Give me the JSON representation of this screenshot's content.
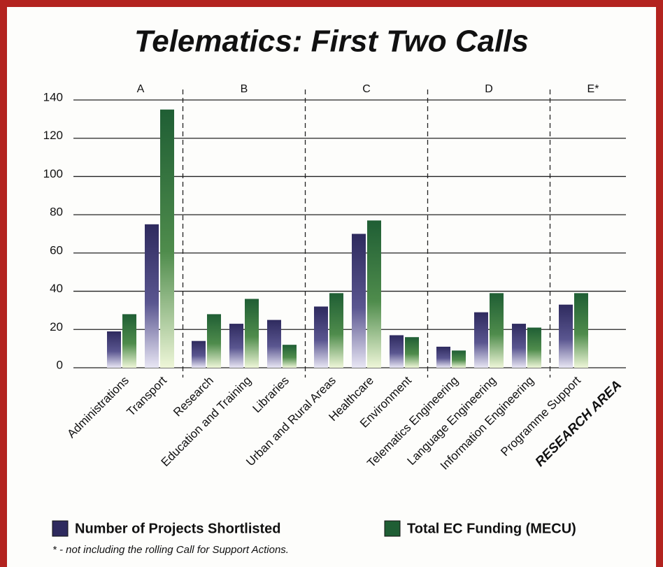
{
  "chart_data": {
    "type": "bar",
    "title": "Telematics: First Two Calls",
    "xlabel": "RESEARCH AREA",
    "groups": [
      {
        "label": "A",
        "size": 2
      },
      {
        "label": "B",
        "size": 3
      },
      {
        "label": "C",
        "size": 3
      },
      {
        "label": "D",
        "size": 3
      },
      {
        "label": "E*",
        "size": 1
      }
    ],
    "categories": [
      "Administrations",
      "Transport",
      "Research",
      "Education and Training",
      "Libraries",
      "Urban and Rural Areas",
      "Healthcare",
      "Environment",
      "Telematics Engineering",
      "Language Engineering",
      "Information Engineering",
      "Programme Support"
    ],
    "series": [
      {
        "name": "Number of Projects Shortlisted",
        "color": "#2e2a5e",
        "values": [
          19,
          75,
          14,
          23,
          25,
          32,
          70,
          17,
          11,
          29,
          23,
          33
        ]
      },
      {
        "name": "Total EC Funding (MECU)",
        "color": "#1f5e34",
        "values": [
          28,
          135,
          28,
          36,
          12,
          39,
          77,
          16,
          9,
          39,
          21,
          39
        ]
      }
    ],
    "ylim": [
      0,
      140
    ],
    "yticks": [
      0,
      20,
      40,
      60,
      80,
      100,
      120,
      140
    ],
    "grid": true,
    "footnote": "* - not including the rolling Call for Support Actions."
  }
}
